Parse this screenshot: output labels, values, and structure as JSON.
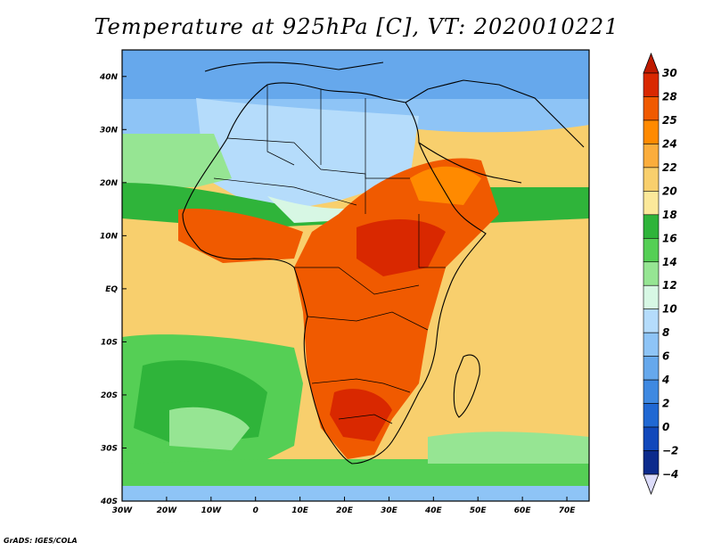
{
  "map": {
    "title": "Temperature at 925hPa [C], VT: 2020010221",
    "region": "Africa",
    "projection": "lat-lon",
    "extent": {
      "lon": [
        -30,
        75
      ],
      "lat": [
        -40,
        45
      ]
    },
    "lat_labels": [
      "40N",
      "30N",
      "20N",
      "10N",
      "EQ",
      "10S",
      "20S",
      "30S",
      "40S"
    ],
    "lat_values": [
      40,
      30,
      20,
      10,
      0,
      -10,
      -20,
      -30,
      -40
    ],
    "lon_labels": [
      "30W",
      "20W",
      "10W",
      "0",
      "10E",
      "20E",
      "30E",
      "40E",
      "50E",
      "60E",
      "70E"
    ],
    "lon_values": [
      -30,
      -20,
      -10,
      0,
      10,
      20,
      30,
      40,
      50,
      60,
      70
    ]
  },
  "colorbar": {
    "labels": [
      "30",
      "28",
      "25",
      "24",
      "22",
      "20",
      "18",
      "16",
      "14",
      "12",
      "10",
      "8",
      "6",
      "4",
      "2",
      "0",
      "−2",
      "−4"
    ],
    "colors": [
      "#d92800",
      "#f05a00",
      "#ff8a00",
      "#fbad3c",
      "#f8cf6d",
      "#fbe89a",
      "#2fb43a",
      "#55cf55",
      "#96e593",
      "#d7f7e4",
      "#b5dcfb",
      "#8ec4f6",
      "#66a8ec",
      "#3f89e1",
      "#2068d3",
      "#1148bb",
      "#0c2b8c"
    ],
    "top_arrow_color": "#bf1a00",
    "bottom_arrow_color": "#dcdcfa"
  },
  "credit": "GrADS: IGES/COLA"
}
